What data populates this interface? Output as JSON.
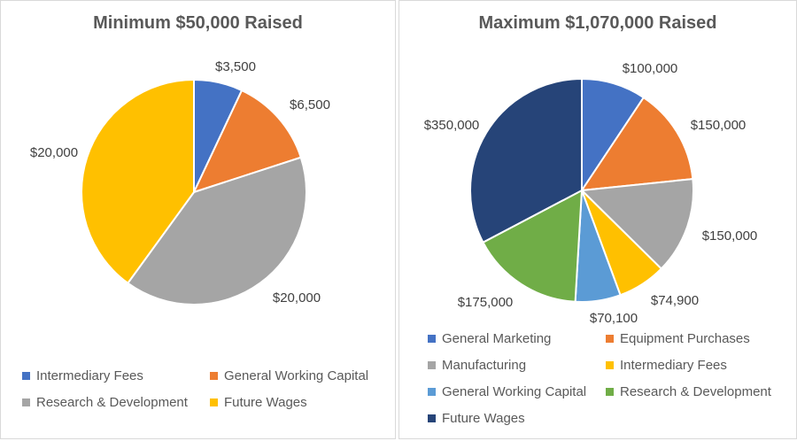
{
  "chart_data": [
    {
      "type": "pie",
      "title": "Minimum $50,000 Raised",
      "legend_position": "bottom",
      "slices": [
        {
          "label": "Intermediary Fees",
          "value": 3500,
          "value_label": "$3,500",
          "color": "#4472C4"
        },
        {
          "label": "General Working Capital",
          "value": 6500,
          "value_label": "$6,500",
          "color": "#ED7D31"
        },
        {
          "label": "Research & Development",
          "value": 20000,
          "value_label": "$20,000",
          "color": "#A5A5A5"
        },
        {
          "label": "Future Wages",
          "value": 20000,
          "value_label": "$20,000",
          "color": "#FFC000"
        }
      ]
    },
    {
      "type": "pie",
      "title": "Maximum $1,070,000 Raised",
      "legend_position": "bottom",
      "slices": [
        {
          "label": "General Marketing",
          "value": 100000,
          "value_label": "$100,000",
          "color": "#4472C4"
        },
        {
          "label": "Equipment Purchases",
          "value": 150000,
          "value_label": "$150,000",
          "color": "#ED7D31"
        },
        {
          "label": "Manufacturing",
          "value": 150000,
          "value_label": "$150,000",
          "color": "#A5A5A5"
        },
        {
          "label": "Intermediary Fees",
          "value": 74900,
          "value_label": "$74,900",
          "color": "#FFC000"
        },
        {
          "label": "General Working Capital",
          "value": 70100,
          "value_label": "$70,100",
          "color": "#5B9BD5"
        },
        {
          "label": "Research & Development",
          "value": 175000,
          "value_label": "$175,000",
          "color": "#70AD47"
        },
        {
          "label": "Future Wages",
          "value": 350000,
          "value_label": "$350,000",
          "color": "#264478"
        }
      ]
    }
  ]
}
